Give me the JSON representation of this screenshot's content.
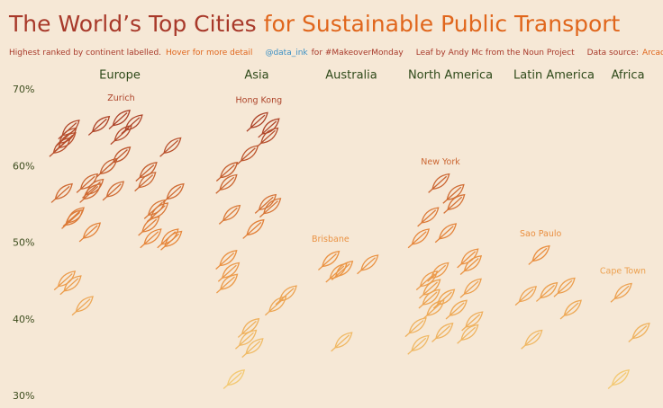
{
  "chart_data": {
    "type": "leaf-strip",
    "title": [
      "The World’s Top Cities",
      "for Sustainable Public Transport"
    ],
    "subtitle": [
      "Highest ranked by continent labelled.",
      "Hover for more detail",
      "@data_ink",
      "for #MakeoverMonday",
      "Leaf by Andy Mc from the Noun Project",
      "Data source:",
      "Arcadis"
    ],
    "ylim": [
      30,
      70
    ],
    "yticks": [
      {
        "value": 30,
        "label": "30%"
      },
      {
        "value": 40,
        "label": "40%"
      },
      {
        "value": 50,
        "label": "50%"
      },
      {
        "value": 60,
        "label": "60%"
      },
      {
        "value": 70,
        "label": "70%"
      }
    ],
    "color_scale": [
      "#f4d27a",
      "#e98a3c",
      "#9e3124"
    ],
    "series": [
      {
        "name": "Europe",
        "label": "Zurich",
        "values": [
          66.3,
          65.7,
          65.5,
          65,
          64.3,
          62.7,
          61.5,
          62.7,
          64,
          63.4,
          60,
          59.5,
          58.2,
          57.3,
          56.7,
          57,
          58,
          56.7,
          56.7,
          54.6,
          54.2,
          53.6,
          53.3,
          52.4,
          51.6,
          50.5,
          50.8,
          50.8,
          44.7,
          45.3,
          42
        ]
      },
      {
        "name": "Asia",
        "label": "Hong Kong",
        "values": [
          66,
          65.2,
          64,
          61.7,
          59.5,
          57.9,
          55.3,
          53.9,
          54.8,
          52,
          48,
          46.4,
          44.9,
          42,
          43.4,
          39.1,
          37.6,
          36.5,
          32.4
        ]
      },
      {
        "name": "Australia",
        "label": "Brisbane",
        "values": [
          47.9,
          46.6,
          46.3,
          47.4,
          37.3
        ]
      },
      {
        "name": "North America",
        "label": "New York",
        "values": [
          58,
          56.6,
          55.3,
          53.6,
          51.5,
          50.8,
          48.2,
          46.4,
          47.3,
          45.3,
          44.3,
          44.2,
          42.9,
          42.9,
          41.5,
          41.5,
          40,
          39.2,
          38.3,
          36.9,
          38.5
        ]
      },
      {
        "name": "Latin America",
        "label": "Sao Paulo",
        "values": [
          48.6,
          44.4,
          43.3,
          43.8,
          41.5,
          37.6
        ]
      },
      {
        "name": "Africa",
        "label": "Cape Town",
        "values": [
          43.7,
          38.5,
          32.4
        ]
      }
    ]
  }
}
